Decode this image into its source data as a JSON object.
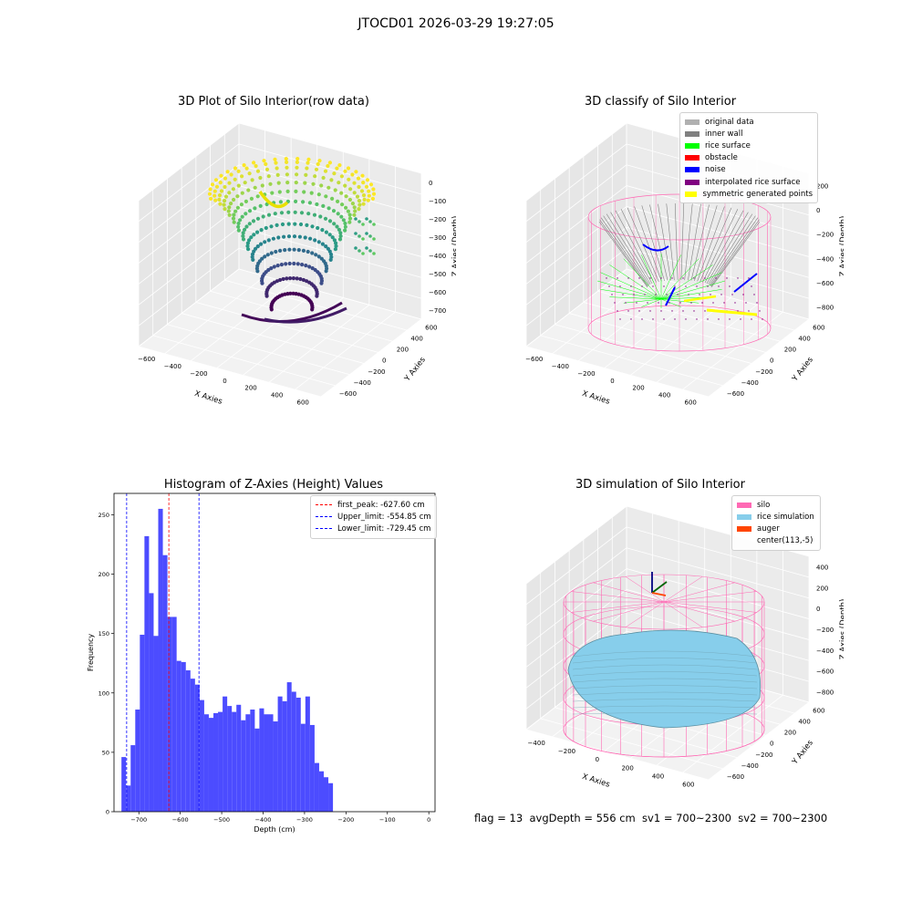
{
  "suptitle": "JTOCD01 2026-03-29 19:27:05",
  "footer": "flag = 13  avgDepth = 556 cm  sv1 = 700~2300  sv2 = 700~2300",
  "colors": {
    "original": "#b0b0b0",
    "inner_wall": "#808080",
    "rice_surface": "#00ff00",
    "obstacle": "#ff0000",
    "noise": "#0000ff",
    "interpolated": "#800080",
    "symmetric": "#ffff00",
    "silo": "#ff69b4",
    "rice_sim": "#87ceeb",
    "auger": "#ff4500",
    "hist_bar": "#4c4cff"
  },
  "panel1": {
    "title": "3D Plot of Silo Interior(row data)",
    "xlabel": "X Axies",
    "ylabel": "Y Axies",
    "zlabel": "Z Axies (Depth)",
    "xticks": [
      "−600",
      "−400",
      "−200",
      "0",
      "200",
      "400",
      "600"
    ],
    "yticks": [
      "−600",
      "−400",
      "−200",
      "0",
      "200",
      "400",
      "600"
    ],
    "zticks": [
      "0",
      "−100",
      "−200",
      "−300",
      "−400",
      "−500",
      "−600",
      "−700"
    ]
  },
  "panel2": {
    "title": "3D classify of Silo Interior",
    "xlabel": "X Axies",
    "ylabel": "Y Axies",
    "zlabel": "Z Axies (Depth)",
    "xticks": [
      "−600",
      "−400",
      "−200",
      "0",
      "200",
      "400",
      "600"
    ],
    "yticks": [
      "−600",
      "−400",
      "−200",
      "0",
      "200",
      "400",
      "600"
    ],
    "zticks": [
      "200",
      "0",
      "−200",
      "−400",
      "−600",
      "−800"
    ],
    "zticks_top": "400",
    "legend": [
      {
        "label": "original data",
        "color": "#b0b0b0"
      },
      {
        "label": "inner wall",
        "color": "#808080"
      },
      {
        "label": "rice surface",
        "color": "#00ff00"
      },
      {
        "label": "obstacle",
        "color": "#ff0000"
      },
      {
        "label": "noise",
        "color": "#0000ff"
      },
      {
        "label": "interpolated rice surface",
        "color": "#800080"
      },
      {
        "label": "symmetric generated points",
        "color": "#ffff00"
      }
    ]
  },
  "panel4": {
    "title": "3D simulation of Silo Interior",
    "xlabel": "X Axies",
    "ylabel": "Y Axies",
    "zlabel": "Z Axies (Depth)",
    "xticks": [
      "−400",
      "−200",
      "0",
      "200",
      "400",
      "600"
    ],
    "yticks": [
      "−600",
      "−400",
      "−200",
      "0",
      "200",
      "400",
      "600"
    ],
    "zticks": [
      "400",
      "200",
      "0",
      "−200",
      "−400",
      "−600",
      "−800"
    ],
    "legend": [
      {
        "label": "silo",
        "color": "#ff69b4"
      },
      {
        "label": "rice simulation",
        "color": "#87ceeb"
      },
      {
        "label": "auger",
        "color": "#ff4500"
      },
      {
        "label": "center(113,-5)",
        "color": ""
      }
    ]
  },
  "chart_data": {
    "type": "bar",
    "title": "Histogram of Z-Axies (Height) Values",
    "xlabel": "Depth (cm)",
    "ylabel": "Frequency",
    "xlim": [
      -760,
      15
    ],
    "ylim": [
      0,
      268
    ],
    "xticks": [
      -700,
      -600,
      -500,
      -400,
      -300,
      -200,
      -100,
      0
    ],
    "xtick_labels": [
      "−700",
      "−600",
      "−500",
      "−400",
      "−300",
      "−200",
      "−100",
      "0"
    ],
    "yticks": [
      0,
      50,
      100,
      150,
      200,
      250
    ],
    "bin_start": -742,
    "bin_width": 11.1,
    "values": [
      46,
      22,
      56,
      86,
      149,
      232,
      184,
      148,
      255,
      216,
      164,
      164,
      127,
      126,
      119,
      112,
      107,
      94,
      82,
      79,
      83,
      84,
      97,
      89,
      84,
      90,
      77,
      82,
      86,
      70,
      87,
      82,
      82,
      76,
      97,
      93,
      109,
      101,
      96,
      74,
      97,
      73,
      41,
      34,
      29,
      24
    ],
    "lines": [
      {
        "name": "first_peak: -627.60 cm",
        "x": -627.6,
        "color": "#ff0000"
      },
      {
        "name": "Upper_limit: -554.85 cm",
        "x": -554.85,
        "color": "#0000ff"
      },
      {
        "name": "Lower_limit: -729.45 cm",
        "x": -729.45,
        "color": "#0000ff"
      }
    ]
  }
}
